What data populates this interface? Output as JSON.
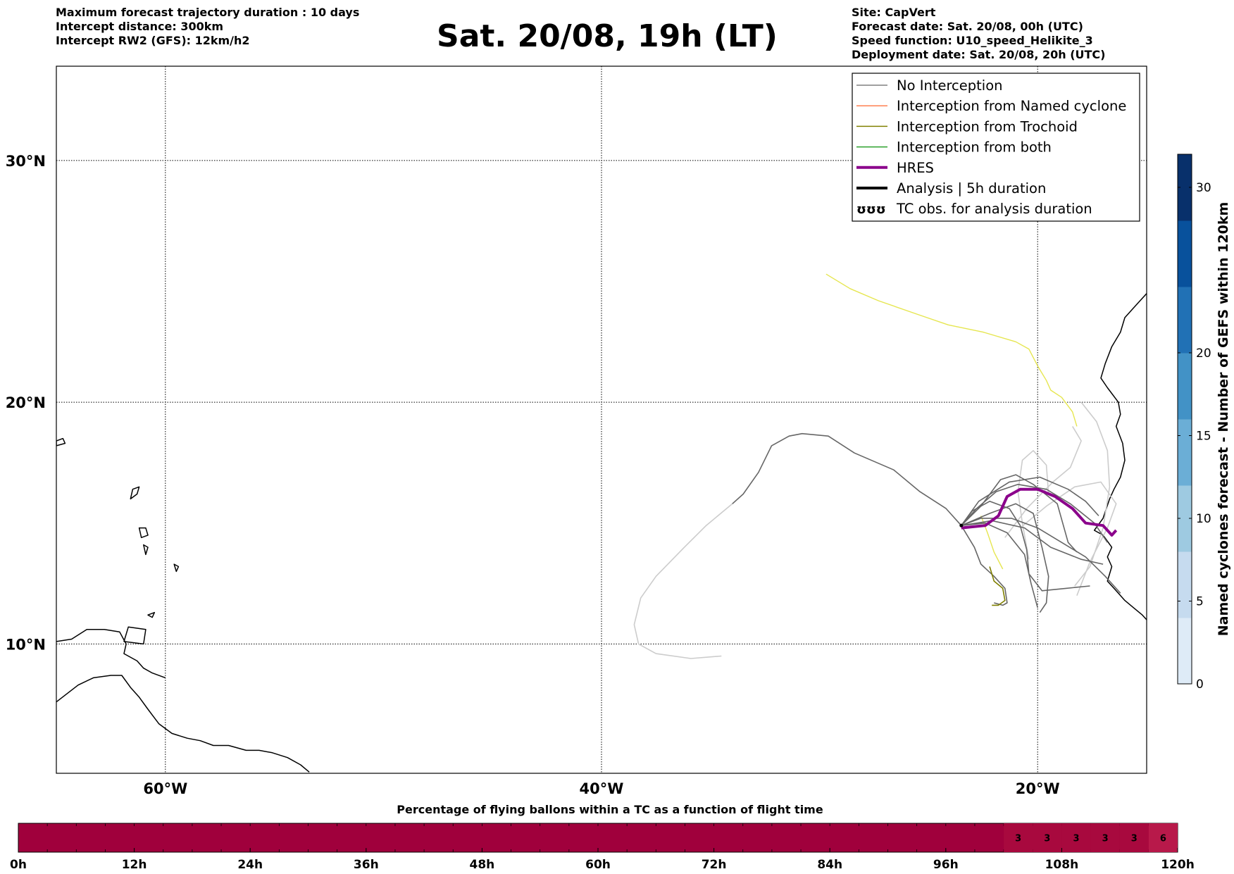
{
  "header": {
    "left_lines": [
      "Maximum forecast trajectory duration : 10 days",
      "Intercept distance: 300km",
      "Intercept RW2 (GFS):  12km/h2"
    ],
    "title": "Sat. 20/08, 19h (LT)",
    "right_lines": [
      "Site: CapVert",
      "Forecast date: Sat. 20/08, 00h (UTC)",
      "Speed function: U10_speed_Helikite_3",
      "Deployment date: Sat. 20/08, 20h (UTC)"
    ]
  },
  "map": {
    "lon_range": [
      -65,
      -15
    ],
    "lat_range": [
      4.65,
      33.9
    ],
    "lon_ticks": [
      {
        "value": -60,
        "label": "60°W"
      },
      {
        "value": -40,
        "label": "40°W"
      },
      {
        "value": -20,
        "label": "20°W"
      }
    ],
    "lat_ticks": [
      {
        "value": 30,
        "label": "30°N"
      },
      {
        "value": 20,
        "label": "20°N"
      },
      {
        "value": 10,
        "label": "10°N"
      }
    ],
    "grid": true,
    "legend_position": "top-right"
  },
  "legend": {
    "items": [
      {
        "label": "No Interception",
        "color": "#808080",
        "style": "thin-line"
      },
      {
        "label": "Interception from Named cyclone",
        "color": "#ff7f50",
        "style": "thin-line"
      },
      {
        "label": "Interception from Trochoid",
        "color": "#808000",
        "style": "thin-line"
      },
      {
        "label": "Interception from both",
        "color": "#2ca02c",
        "style": "thin-line"
      },
      {
        "label": "HRES",
        "color": "#8b008b",
        "style": "thick-line"
      },
      {
        "label": "Analysis | 5h duration",
        "color": "#000000",
        "style": "thick-line"
      },
      {
        "label": "TC obs. for analysis duration",
        "color": "#000000",
        "style": "tc-symbols",
        "icon": "cyclone-icon"
      }
    ]
  },
  "colorbar": {
    "label": "Named cyclones forecast - Number of GEFS within 120km",
    "min": 0,
    "max": 32,
    "ticks": [
      0,
      5,
      10,
      15,
      20,
      30
    ],
    "colors": [
      "#deebf7",
      "#c6dbef",
      "#9ecae1",
      "#6baed6",
      "#4292c6",
      "#2171b5",
      "#08519c",
      "#08306b"
    ]
  },
  "bottom_bar": {
    "title": "Percentage of flying ballons within a TC as a function of flight time",
    "ticks": [
      "0h",
      "12h",
      "24h",
      "36h",
      "48h",
      "60h",
      "72h",
      "84h",
      "96h",
      "108h",
      "120h"
    ],
    "base_color": "#a0003c",
    "cells": [
      {
        "start_h": 102,
        "end_h": 105,
        "value": "3",
        "color": "#a8093e"
      },
      {
        "start_h": 105,
        "end_h": 108,
        "value": "3",
        "color": "#a8093e"
      },
      {
        "start_h": 108,
        "end_h": 111,
        "value": "3",
        "color": "#a8093e"
      },
      {
        "start_h": 111,
        "end_h": 114,
        "value": "3",
        "color": "#a8093e"
      },
      {
        "start_h": 114,
        "end_h": 117,
        "value": "3",
        "color": "#a8093e"
      },
      {
        "start_h": 117,
        "end_h": 120,
        "value": "6",
        "color": "#b8194a"
      }
    ]
  },
  "trajectories": {
    "site": {
      "name": "CapVert",
      "lon": -23.5,
      "lat": 14.9
    },
    "hres": {
      "color": "#8b008b",
      "points": [
        [
          -23.5,
          14.8
        ],
        [
          -22.4,
          14.9
        ],
        [
          -21.8,
          15.3
        ],
        [
          -21.4,
          16.1
        ],
        [
          -20.8,
          16.4
        ],
        [
          -20.0,
          16.4
        ],
        [
          -19.2,
          16.1
        ],
        [
          -18.4,
          15.6
        ],
        [
          -17.8,
          15.0
        ],
        [
          -17.0,
          14.9
        ],
        [
          -16.6,
          14.5
        ],
        [
          -16.4,
          14.7
        ]
      ]
    },
    "no_interception": {
      "color": "#666666",
      "tracks": [
        [
          [
            -23.5,
            14.9
          ],
          [
            -24.2,
            15.6
          ],
          [
            -25.4,
            16.3
          ],
          [
            -26.6,
            17.2
          ],
          [
            -28.4,
            17.9
          ],
          [
            -29.6,
            18.6
          ],
          [
            -30.8,
            18.7
          ],
          [
            -31.4,
            18.6
          ],
          [
            -32.2,
            18.2
          ],
          [
            -32.8,
            17.1
          ],
          [
            -33.5,
            16.2
          ],
          [
            -34.0,
            15.8
          ]
        ],
        [
          [
            -23.5,
            14.9
          ],
          [
            -22.6,
            15.7
          ],
          [
            -21.7,
            16.8
          ],
          [
            -21.0,
            17.0
          ],
          [
            -20.2,
            16.6
          ],
          [
            -19.1,
            15.8
          ],
          [
            -18.6,
            14.2
          ],
          [
            -18.2,
            13.8
          ]
        ],
        [
          [
            -23.5,
            14.9
          ],
          [
            -22.9,
            14.0
          ],
          [
            -22.6,
            13.3
          ],
          [
            -22.0,
            12.8
          ],
          [
            -21.5,
            12.3
          ],
          [
            -21.4,
            11.7
          ],
          [
            -21.6,
            11.6
          ],
          [
            -22.0,
            11.7
          ]
        ],
        [
          [
            -23.5,
            14.9
          ],
          [
            -22.2,
            15.4
          ],
          [
            -21.0,
            15.8
          ],
          [
            -20.2,
            15.4
          ],
          [
            -19.8,
            14.0
          ],
          [
            -19.5,
            12.8
          ],
          [
            -19.6,
            11.7
          ],
          [
            -19.9,
            11.3
          ]
        ],
        [
          [
            -23.5,
            14.9
          ],
          [
            -22.6,
            15.2
          ],
          [
            -21.2,
            15.2
          ],
          [
            -20.0,
            14.8
          ],
          [
            -18.9,
            14.2
          ],
          [
            -17.8,
            13.6
          ],
          [
            -16.9,
            12.8
          ],
          [
            -16.2,
            12.1
          ]
        ],
        [
          [
            -23.5,
            14.9
          ],
          [
            -22.8,
            15.6
          ],
          [
            -21.9,
            16.3
          ],
          [
            -20.9,
            16.6
          ],
          [
            -19.6,
            16.4
          ],
          [
            -18.5,
            15.8
          ],
          [
            -17.4,
            15.0
          ],
          [
            -16.8,
            14.2
          ]
        ],
        [
          [
            -23.5,
            14.9
          ],
          [
            -22.4,
            15.0
          ],
          [
            -21.4,
            14.6
          ],
          [
            -20.6,
            13.7
          ],
          [
            -20.3,
            12.5
          ],
          [
            -20.0,
            11.5
          ]
        ],
        [
          [
            -23.5,
            14.9
          ],
          [
            -22.7,
            15.9
          ],
          [
            -21.3,
            16.7
          ],
          [
            -19.9,
            16.9
          ],
          [
            -18.6,
            16.4
          ],
          [
            -17.8,
            15.9
          ],
          [
            -17.2,
            15.3
          ]
        ],
        [
          [
            -23.5,
            14.9
          ],
          [
            -22.1,
            15.1
          ],
          [
            -20.6,
            14.8
          ],
          [
            -19.4,
            14.0
          ],
          [
            -18.0,
            13.5
          ],
          [
            -17.0,
            13.3
          ]
        ],
        [
          [
            -23.5,
            14.9
          ],
          [
            -23.0,
            15.5
          ],
          [
            -22.2,
            15.9
          ],
          [
            -21.3,
            15.6
          ],
          [
            -20.8,
            14.9
          ],
          [
            -20.5,
            13.9
          ],
          [
            -20.4,
            12.9
          ],
          [
            -19.8,
            12.2
          ],
          [
            -18.7,
            12.3
          ],
          [
            -17.6,
            12.4
          ]
        ]
      ]
    },
    "no_interception_light": {
      "color": "#cccccc",
      "tracks": [
        [
          [
            -34.0,
            15.8
          ],
          [
            -35.2,
            14.9
          ],
          [
            -36.2,
            14.0
          ],
          [
            -37.5,
            12.8
          ],
          [
            -38.2,
            11.9
          ],
          [
            -38.5,
            10.8
          ],
          [
            -38.3,
            10.0
          ],
          [
            -37.5,
            9.6
          ],
          [
            -35.9,
            9.4
          ],
          [
            -34.5,
            9.5
          ]
        ],
        [
          [
            -20.4,
            13.5
          ],
          [
            -20.7,
            15.0
          ],
          [
            -20.9,
            16.3
          ],
          [
            -20.7,
            17.6
          ],
          [
            -20.2,
            18.0
          ],
          [
            -19.6,
            17.4
          ],
          [
            -19.5,
            16.2
          ]
        ],
        [
          [
            -20.8,
            14.8
          ],
          [
            -19.6,
            15.7
          ],
          [
            -18.3,
            16.5
          ],
          [
            -17.1,
            16.7
          ],
          [
            -16.4,
            15.8
          ],
          [
            -16.8,
            14.8
          ],
          [
            -17.6,
            13.4
          ],
          [
            -18.2,
            12.0
          ]
        ],
        [
          [
            -18.3,
            12.4
          ],
          [
            -17.6,
            13.2
          ],
          [
            -17.0,
            14.8
          ],
          [
            -16.7,
            16.5
          ],
          [
            -16.8,
            18.0
          ],
          [
            -17.3,
            19.2
          ],
          [
            -18.0,
            20.0
          ]
        ],
        [
          [
            -21.5,
            14.4
          ],
          [
            -20.5,
            15.6
          ],
          [
            -19.3,
            16.7
          ],
          [
            -18.5,
            17.3
          ],
          [
            -18.0,
            18.4
          ],
          [
            -18.4,
            19.0
          ]
        ]
      ]
    },
    "trochoid": {
      "color": "#808000",
      "tracks": [
        [
          [
            -22.2,
            13.2
          ],
          [
            -22.0,
            12.6
          ],
          [
            -21.6,
            12.3
          ],
          [
            -21.5,
            11.8
          ],
          [
            -21.8,
            11.6
          ],
          [
            -22.1,
            11.6
          ]
        ]
      ]
    },
    "yellow": {
      "color": "#e6e650",
      "tracks": [
        [
          [
            -29.7,
            25.3
          ],
          [
            -28.6,
            24.7
          ],
          [
            -27.3,
            24.2
          ],
          [
            -25.4,
            23.6
          ],
          [
            -24.1,
            23.2
          ],
          [
            -22.5,
            22.9
          ],
          [
            -21.0,
            22.5
          ],
          [
            -20.4,
            22.2
          ],
          [
            -20.0,
            21.5
          ],
          [
            -19.6,
            20.9
          ],
          [
            -19.4,
            20.5
          ],
          [
            -18.9,
            20.2
          ],
          [
            -18.4,
            19.6
          ],
          [
            -18.2,
            19.0
          ]
        ],
        [
          [
            -22.6,
            15.3
          ],
          [
            -22.3,
            14.6
          ],
          [
            -22.0,
            13.8
          ],
          [
            -21.6,
            13.1
          ]
        ]
      ]
    }
  },
  "coastlines": [
    {
      "name": "south-america",
      "points": [
        [
          -65.0,
          7.6
        ],
        [
          -64.0,
          8.3
        ],
        [
          -63.3,
          8.6
        ],
        [
          -62.5,
          8.7
        ],
        [
          -62.0,
          8.7
        ],
        [
          -61.6,
          8.2
        ],
        [
          -61.2,
          7.8
        ],
        [
          -60.8,
          7.3
        ],
        [
          -60.3,
          6.7
        ],
        [
          -59.7,
          6.3
        ],
        [
          -59.0,
          6.1
        ],
        [
          -58.4,
          6.0
        ],
        [
          -57.8,
          5.8
        ],
        [
          -57.1,
          5.8
        ],
        [
          -56.3,
          5.6
        ],
        [
          -55.7,
          5.6
        ],
        [
          -55.1,
          5.5
        ],
        [
          -54.4,
          5.3
        ],
        [
          -53.8,
          5.0
        ],
        [
          -53.4,
          4.7
        ]
      ]
    },
    {
      "name": "venezuela-coast",
      "points": [
        [
          -65.0,
          10.1
        ],
        [
          -64.3,
          10.2
        ],
        [
          -63.6,
          10.6
        ],
        [
          -62.8,
          10.6
        ],
        [
          -62.1,
          10.5
        ],
        [
          -61.8,
          10.0
        ],
        [
          -61.9,
          9.6
        ],
        [
          -61.3,
          9.3
        ],
        [
          -61.0,
          9.0
        ],
        [
          -60.6,
          8.8
        ],
        [
          -60.0,
          8.6
        ]
      ]
    },
    {
      "name": "africa-north",
      "points": [
        [
          -15.0,
          24.5
        ],
        [
          -15.5,
          24.0
        ],
        [
          -16.0,
          23.5
        ],
        [
          -16.2,
          22.9
        ],
        [
          -16.6,
          22.3
        ],
        [
          -16.9,
          21.6
        ],
        [
          -17.1,
          21.0
        ],
        [
          -16.8,
          20.6
        ],
        [
          -16.3,
          20.0
        ],
        [
          -16.2,
          19.5
        ],
        [
          -16.4,
          19.0
        ],
        [
          -16.1,
          18.3
        ],
        [
          -16.0,
          17.6
        ],
        [
          -16.2,
          16.9
        ],
        [
          -16.5,
          16.4
        ],
        [
          -16.7,
          16.0
        ],
        [
          -17.0,
          15.2
        ],
        [
          -17.4,
          14.7
        ],
        [
          -17.0,
          14.5
        ],
        [
          -16.6,
          14.0
        ],
        [
          -16.8,
          13.6
        ],
        [
          -16.6,
          13.2
        ],
        [
          -16.8,
          12.6
        ],
        [
          -16.4,
          12.2
        ],
        [
          -16.0,
          11.8
        ],
        [
          -15.6,
          11.5
        ],
        [
          -15.2,
          11.2
        ],
        [
          -15.0,
          11.0
        ]
      ]
    },
    {
      "name": "canary-1",
      "closed": true,
      "points": [
        [
          -17.6,
          28.5
        ],
        [
          -17.4,
          28.8
        ],
        [
          -17.7,
          28.9
        ],
        [
          -17.9,
          28.6
        ]
      ]
    },
    {
      "name": "canary-2",
      "closed": true,
      "points": [
        [
          -16.0,
          28.6
        ],
        [
          -15.4,
          28.8
        ],
        [
          -15.4,
          29.3
        ],
        [
          -16.1,
          29.1
        ],
        [
          -16.5,
          28.4
        ]
      ]
    },
    {
      "name": "canary-3",
      "closed": true,
      "points": [
        [
          -14.5,
          28.1
        ],
        [
          -14.1,
          28.2
        ],
        [
          -14.0,
          28.6
        ],
        [
          -14.4,
          28.5
        ]
      ]
    },
    {
      "name": "canary-4",
      "closed": true,
      "points": [
        [
          -18.0,
          27.7
        ],
        [
          -17.8,
          27.6
        ],
        [
          -17.9,
          27.8
        ]
      ]
    },
    {
      "name": "lesser-antilles-1",
      "closed": true,
      "points": [
        [
          -61.6,
          16.0
        ],
        [
          -61.3,
          16.2
        ],
        [
          -61.2,
          16.5
        ],
        [
          -61.5,
          16.4
        ]
      ]
    },
    {
      "name": "lesser-antilles-2",
      "closed": true,
      "points": [
        [
          -61.1,
          14.4
        ],
        [
          -61.2,
          14.8
        ],
        [
          -60.9,
          14.8
        ],
        [
          -60.8,
          14.5
        ]
      ]
    },
    {
      "name": "lesser-antilles-3",
      "closed": true,
      "points": [
        [
          -60.9,
          13.7
        ],
        [
          -61.0,
          14.1
        ],
        [
          -60.8,
          14.0
        ]
      ]
    },
    {
      "name": "lesser-antilles-4",
      "closed": true,
      "points": [
        [
          -59.5,
          13.0
        ],
        [
          -59.6,
          13.3
        ],
        [
          -59.4,
          13.2
        ]
      ]
    },
    {
      "name": "trinidad",
      "closed": true,
      "points": [
        [
          -61.9,
          10.1
        ],
        [
          -61.0,
          10.0
        ],
        [
          -60.9,
          10.6
        ],
        [
          -61.7,
          10.7
        ]
      ]
    },
    {
      "name": "tobago",
      "closed": true,
      "points": [
        [
          -60.8,
          11.2
        ],
        [
          -60.5,
          11.3
        ],
        [
          -60.6,
          11.1
        ]
      ]
    },
    {
      "name": "puerto-rico-area",
      "closed": true,
      "points": [
        [
          -65.0,
          18.2
        ],
        [
          -64.6,
          18.3
        ],
        [
          -64.7,
          18.5
        ],
        [
          -65.0,
          18.4
        ]
      ]
    }
  ]
}
